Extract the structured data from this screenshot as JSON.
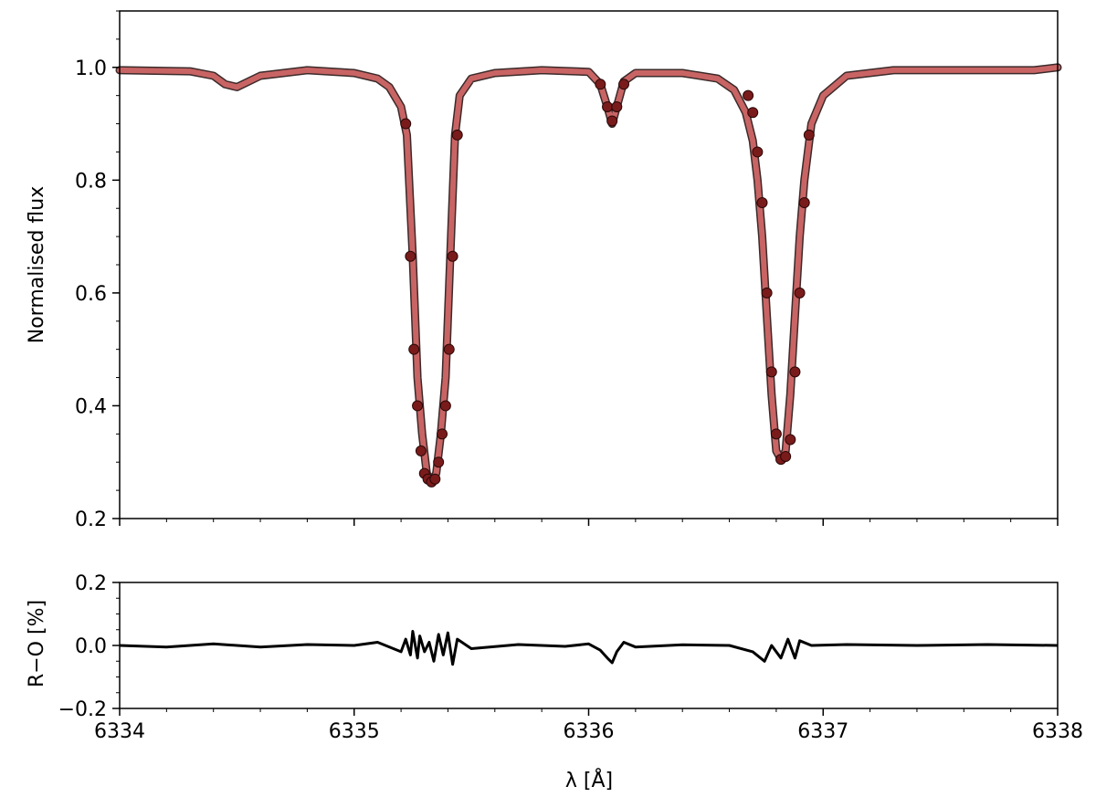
{
  "chart_data": [
    {
      "type": "line",
      "panel": "spectrum",
      "title": "",
      "xlabel": "",
      "ylabel": "Normalised flux",
      "xlim": [
        6334,
        6338
      ],
      "ylim": [
        0.2,
        1.1
      ],
      "yticks": [
        0.2,
        0.4,
        0.6,
        0.8,
        1.0
      ],
      "ytick_labels": [
        "0.2",
        "0.4",
        "0.6",
        "0.8",
        "1.0"
      ],
      "xticks": [
        6334,
        6335,
        6336,
        6337,
        6338
      ],
      "grid": false,
      "series": [
        {
          "kind": "model-line",
          "color": "#c96464",
          "x": [
            6334.0,
            6334.3,
            6334.4,
            6334.45,
            6334.5,
            6334.6,
            6334.8,
            6335.0,
            6335.1,
            6335.15,
            6335.2,
            6335.225,
            6335.25,
            6335.27,
            6335.29,
            6335.31,
            6335.33,
            6335.35,
            6335.37,
            6335.39,
            6335.41,
            6335.43,
            6335.45,
            6335.5,
            6335.6,
            6335.8,
            6336.0,
            6336.05,
            6336.08,
            6336.1,
            6336.12,
            6336.15,
            6336.2,
            6336.4,
            6336.55,
            6336.62,
            6336.67,
            6336.7,
            6336.72,
            6336.74,
            6336.76,
            6336.78,
            6336.8,
            6336.82,
            6336.84,
            6336.86,
            6336.88,
            6336.9,
            6336.92,
            6336.95,
            6337.0,
            6337.1,
            6337.3,
            6337.6,
            6337.9,
            6338.0
          ],
          "y": [
            0.995,
            0.993,
            0.985,
            0.97,
            0.965,
            0.985,
            0.995,
            0.99,
            0.98,
            0.965,
            0.93,
            0.88,
            0.665,
            0.45,
            0.35,
            0.28,
            0.265,
            0.28,
            0.35,
            0.45,
            0.665,
            0.88,
            0.95,
            0.98,
            0.99,
            0.995,
            0.992,
            0.97,
            0.93,
            0.9,
            0.93,
            0.975,
            0.99,
            0.99,
            0.98,
            0.96,
            0.92,
            0.87,
            0.8,
            0.7,
            0.56,
            0.42,
            0.32,
            0.305,
            0.32,
            0.42,
            0.56,
            0.7,
            0.8,
            0.9,
            0.95,
            0.985,
            0.995,
            0.995,
            0.995,
            1.0
          ]
        },
        {
          "kind": "observed-points",
          "color": "#7a1b1b",
          "x": [
            6335.22,
            6335.24,
            6335.255,
            6335.27,
            6335.285,
            6335.3,
            6335.315,
            6335.33,
            6335.345,
            6335.36,
            6335.375,
            6335.39,
            6335.405,
            6335.42,
            6335.44,
            6336.05,
            6336.08,
            6336.1,
            6336.12,
            6336.15,
            6336.68,
            6336.7,
            6336.72,
            6336.74,
            6336.76,
            6336.78,
            6336.8,
            6336.82,
            6336.84,
            6336.86,
            6336.88,
            6336.9,
            6336.92,
            6336.94
          ],
          "y": [
            0.9,
            0.665,
            0.5,
            0.4,
            0.32,
            0.28,
            0.27,
            0.265,
            0.27,
            0.3,
            0.35,
            0.4,
            0.5,
            0.665,
            0.88,
            0.97,
            0.93,
            0.905,
            0.93,
            0.97,
            0.95,
            0.92,
            0.85,
            0.76,
            0.6,
            0.46,
            0.35,
            0.305,
            0.31,
            0.34,
            0.46,
            0.6,
            0.76,
            0.88
          ]
        }
      ]
    },
    {
      "type": "line",
      "panel": "residuals",
      "title": "",
      "xlabel": "λ [Å]",
      "ylabel": "R−O [%]",
      "xlim": [
        6334,
        6338
      ],
      "ylim": [
        -0.2,
        0.2
      ],
      "yticks": [
        -0.2,
        0.0,
        0.2
      ],
      "ytick_labels": [
        "−0.2",
        "0.0",
        "0.2"
      ],
      "xticks": [
        6334,
        6335,
        6336,
        6337,
        6338
      ],
      "xtick_labels": [
        "6334",
        "6335",
        "6336",
        "6337",
        "6338"
      ],
      "grid": false,
      "series": [
        {
          "kind": "residual-line",
          "color": "#000000",
          "x": [
            6334.0,
            6334.2,
            6334.4,
            6334.6,
            6334.8,
            6335.0,
            6335.1,
            6335.2,
            6335.22,
            6335.24,
            6335.25,
            6335.27,
            6335.28,
            6335.3,
            6335.32,
            6335.34,
            6335.36,
            6335.38,
            6335.4,
            6335.42,
            6335.44,
            6335.5,
            6335.7,
            6335.9,
            6336.0,
            6336.05,
            6336.08,
            6336.1,
            6336.12,
            6336.15,
            6336.2,
            6336.4,
            6336.6,
            6336.7,
            6336.75,
            6336.78,
            6336.82,
            6336.85,
            6336.88,
            6336.9,
            6336.95,
            6337.1,
            6337.4,
            6337.7,
            6338.0
          ],
          "y": [
            0.0,
            -0.005,
            0.005,
            -0.005,
            0.003,
            0.0,
            0.01,
            -0.02,
            0.02,
            -0.03,
            0.045,
            -0.04,
            0.03,
            -0.02,
            0.01,
            -0.05,
            0.035,
            -0.03,
            0.04,
            -0.06,
            0.02,
            -0.01,
            0.003,
            -0.003,
            0.005,
            -0.015,
            -0.04,
            -0.055,
            -0.02,
            0.01,
            -0.005,
            0.002,
            0.0,
            -0.02,
            -0.05,
            0.0,
            -0.04,
            0.02,
            -0.04,
            0.015,
            0.0,
            0.003,
            0.0,
            0.003,
            0.0
          ]
        }
      ]
    }
  ]
}
